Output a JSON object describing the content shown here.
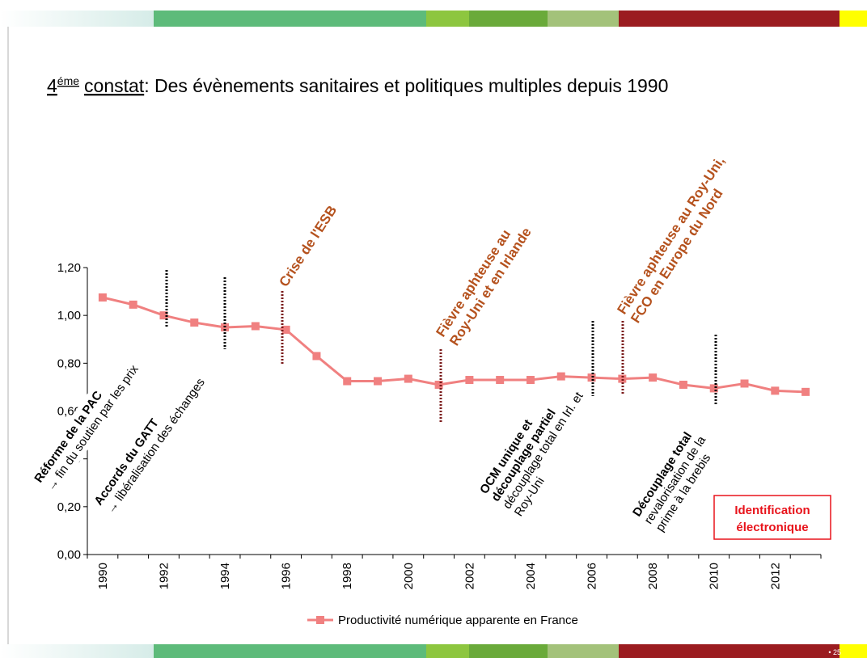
{
  "header": {
    "title_parts": [
      "4",
      "éme",
      "constat",
      ": Des évènements sanitaires et politiques multiples depuis 1990"
    ]
  },
  "chart_data": {
    "type": "line",
    "categories": [
      "1990",
      null,
      "1992",
      null,
      "1994",
      null,
      "1996",
      null,
      "1998",
      null,
      "2000",
      null,
      "2002",
      null,
      "2004",
      null,
      "2006",
      null,
      "2008",
      null,
      "2010",
      null,
      "2012",
      null
    ],
    "series": [
      {
        "name": "Productivité numérique apparente en France",
        "color": "#f08080",
        "values": [
          1.075,
          1.045,
          1.0,
          0.97,
          0.95,
          0.955,
          0.94,
          0.83,
          0.725,
          0.725,
          0.735,
          0.71,
          0.73,
          0.73,
          0.73,
          0.745,
          0.74,
          0.735,
          0.74,
          0.71,
          0.695,
          0.715,
          0.685,
          0.68
        ]
      }
    ],
    "ylim": [
      0,
      1.2
    ],
    "yticks": [
      {
        "value": 0,
        "label": "0,00"
      },
      {
        "value": 0.2,
        "label": "0,20"
      },
      {
        "value": 0.4,
        "label": "0,40"
      },
      {
        "value": 0.6,
        "label": "0,60"
      },
      {
        "value": 0.8,
        "label": "0,80"
      },
      {
        "value": 1.0,
        "label": "1,00"
      },
      {
        "value": 1.2,
        "label": "1,20"
      }
    ],
    "annotations": [
      {
        "lines": [
          "Réforme de la PAC",
          "→ fin du soutien par les prix"
        ]
      },
      {
        "lines": [
          "Accords du GATT",
          "→ libéralisation des échanges"
        ]
      },
      {
        "lines": [
          "Crise de l'ESB"
        ]
      },
      {
        "lines": [
          "Fièvre aphteuse au",
          "Roy-Uni et en Irlande"
        ]
      },
      {
        "lines": [
          "OCM unique et",
          "découplage partiel",
          "découplage total en Irl. et",
          "Roy-Uni"
        ]
      },
      {
        "lines": [
          "Fièvre aphteuse au Roy-Uni,",
          "FCO en Europe du Nord"
        ]
      },
      {
        "lines": [
          "Découplage total",
          "revalorisation de la",
          "prime à la brebis"
        ]
      },
      {
        "lines": [
          "Identification",
          "électronique"
        ]
      }
    ]
  },
  "page_number": "• 25"
}
